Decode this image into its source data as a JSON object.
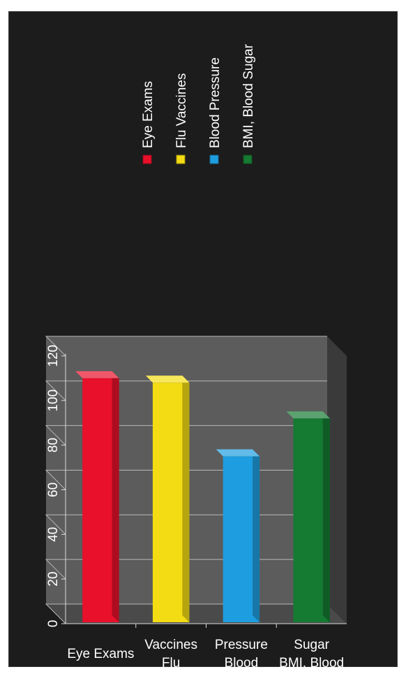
{
  "chart_data": {
    "type": "bar",
    "categories": [
      "Eye Exams",
      "Flu Vaccines",
      "Blood Pressure",
      "BMI, Blood Sugar"
    ],
    "category_lines": [
      [
        "Eye Exams"
      ],
      [
        "Flu",
        "Vaccines"
      ],
      [
        "Blood",
        "Pressure"
      ],
      [
        "BMI, Blood",
        "Sugar"
      ]
    ],
    "values": [
      110,
      108,
      75,
      92
    ],
    "ylim": [
      0,
      120
    ],
    "yticks": [
      "0",
      "20",
      "40",
      "60",
      "80",
      "100",
      "120"
    ],
    "legend": [
      {
        "label": "Eye Exams",
        "color": "#e8102a"
      },
      {
        "label": "Flu Vaccines",
        "color": "#f4dc14"
      },
      {
        "label": "Blood Pressure",
        "color": "#1e9ee0"
      },
      {
        "label": "BMI, Blood Sugar",
        "color": "#157a32"
      }
    ],
    "legend_position": "right",
    "grid": true,
    "style": "3d-bar",
    "background": "#1c1c1c"
  }
}
